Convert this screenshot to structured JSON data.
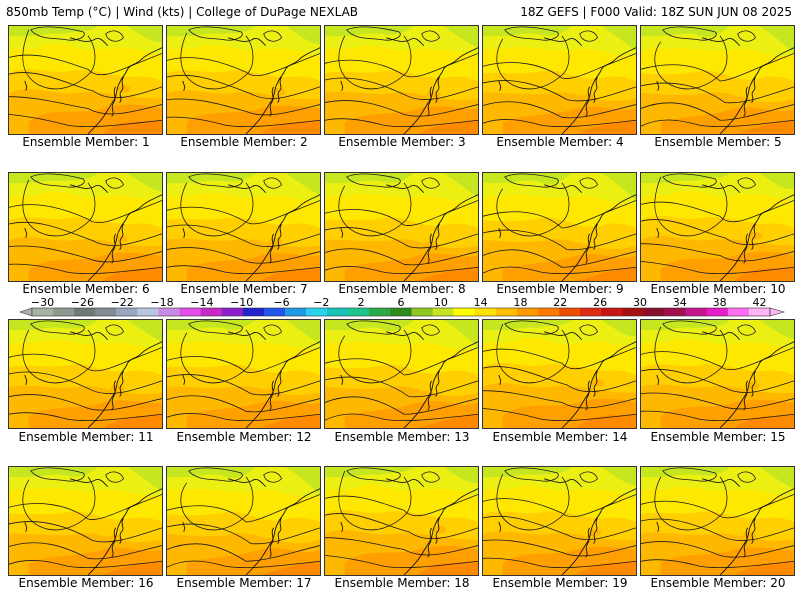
{
  "header": {
    "left": "850mb Temp (°C) | Wind (kts) | College of DuPage NEXLAB",
    "right": "18Z GEFS | F000 Valid: 18Z SUN JUN 08 2025"
  },
  "members": [
    "Ensemble Member: 1",
    "Ensemble Member: 2",
    "Ensemble Member: 3",
    "Ensemble Member: 4",
    "Ensemble Member: 5",
    "Ensemble Member: 6",
    "Ensemble Member: 7",
    "Ensemble Member: 8",
    "Ensemble Member: 9",
    "Ensemble Member: 10",
    "Ensemble Member: 11",
    "Ensemble Member: 12",
    "Ensemble Member: 13",
    "Ensemble Member: 14",
    "Ensemble Member: 15",
    "Ensemble Member: 16",
    "Ensemble Member: 17",
    "Ensemble Member: 18",
    "Ensemble Member: 19",
    "Ensemble Member: 20"
  ],
  "colorbar": {
    "tick_labels": [
      "-30",
      "-26",
      "-22",
      "-18",
      "-14",
      "-10",
      "-6",
      "-2",
      "2",
      "6",
      "10",
      "14",
      "18",
      "22",
      "26",
      "30",
      "34",
      "38",
      "42"
    ],
    "colors": [
      "#a6b2a6",
      "#8c998c",
      "#6e7a7a",
      "#828a96",
      "#9aa6c0",
      "#b8c6e0",
      "#c98ae6",
      "#e34fe6",
      "#c62ac9",
      "#8c1fc9",
      "#2222cc",
      "#1f55e8",
      "#1f9ae8",
      "#2ad2ee",
      "#18c4b8",
      "#1fc489",
      "#2caa4a",
      "#2f8c1a",
      "#8fc61f",
      "#c6e61f",
      "#ffff00",
      "#ffe300",
      "#ffbe00",
      "#ff9a00",
      "#ff7a00",
      "#f04d00",
      "#e02a14",
      "#c81414",
      "#a61010",
      "#8a0e2a",
      "#a0104a",
      "#c8148c",
      "#e61ec8",
      "#ff6ef0",
      "#ffb4f6"
    ]
  },
  "field_colors": {
    "c10": "#c6e61f",
    "c12": "#ecef12",
    "c14": "#ffe800",
    "c16": "#ffcf00",
    "c18": "#ffb800",
    "c20": "#ffa000",
    "c22": "#ff8a00",
    "ocean": "#ff9c0a"
  }
}
